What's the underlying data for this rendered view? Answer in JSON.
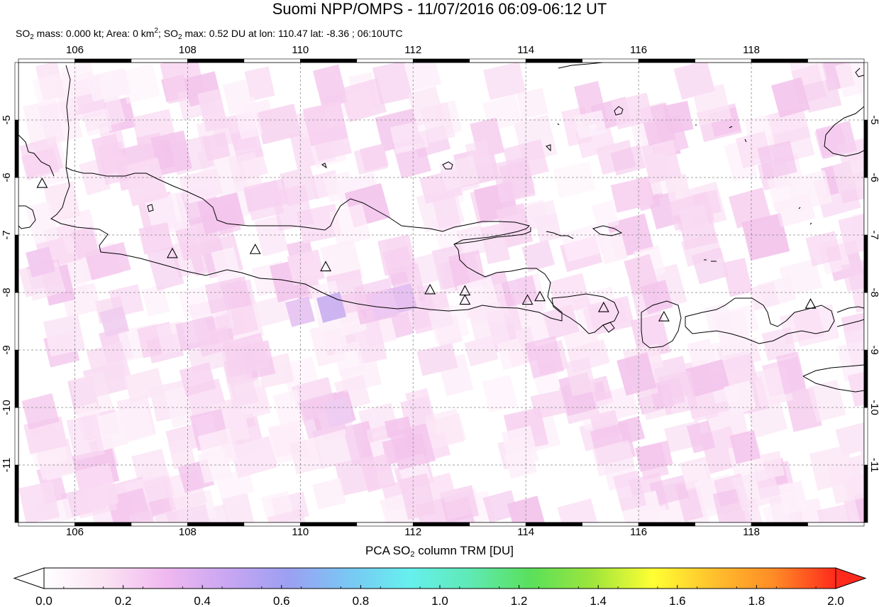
{
  "header": {
    "title": "Suomi NPP/OMPS - 11/07/2016 06:09-06:12 UT",
    "subtitle": {
      "p1": "SO",
      "p1_sub": "2",
      "p2": " mass: 0.000 kt; Area: 0 km",
      "p2_sup": "2",
      "p3": "; SO",
      "p3_sub": "2",
      "p4": " max: 0.52 DU at lon: 110.47 lat: -8.36 ; 06:10UTC"
    }
  },
  "map": {
    "lon_range": [
      105,
      120
    ],
    "lat_range": [
      -12,
      -4
    ],
    "lon_ticks": [
      "106",
      "108",
      "110",
      "112",
      "114",
      "116",
      "118"
    ],
    "lat_ticks": [
      "-5",
      "-6",
      "-7",
      "-8",
      "-9",
      "-10",
      "-11"
    ],
    "grid": true,
    "volcanoes": [
      {
        "lon": 105.42,
        "lat": -6.1
      },
      {
        "lon": 107.73,
        "lat": -7.32
      },
      {
        "lon": 109.2,
        "lat": -7.25
      },
      {
        "lon": 110.45,
        "lat": -7.55
      },
      {
        "lon": 112.3,
        "lat": -7.95
      },
      {
        "lon": 112.92,
        "lat": -7.97
      },
      {
        "lon": 112.92,
        "lat": -8.13
      },
      {
        "lon": 114.03,
        "lat": -8.13
      },
      {
        "lon": 114.25,
        "lat": -8.07
      },
      {
        "lon": 115.38,
        "lat": -8.26
      },
      {
        "lon": 116.45,
        "lat": -8.42
      },
      {
        "lon": 119.05,
        "lat": -8.2
      }
    ]
  },
  "colorbar": {
    "label_main": "PCA SO",
    "label_sub": "2",
    "label_rest": " column TRM [DU]",
    "min": 0.0,
    "max": 2.0,
    "tick_labels": [
      "0.0",
      "0.2",
      "0.4",
      "0.6",
      "0.8",
      "1.0",
      "1.2",
      "1.4",
      "1.6",
      "1.8",
      "2.0"
    ],
    "colors": [
      "#ffffff",
      "#fbe3f3",
      "#f0b8f0",
      "#c9a6f2",
      "#9d9ff2",
      "#79c7f4",
      "#66f0ee",
      "#5fe9b4",
      "#5ae05a",
      "#9ee53c",
      "#ffff33",
      "#ffc02d",
      "#ff8a26",
      "#ff2a1c"
    ]
  }
}
